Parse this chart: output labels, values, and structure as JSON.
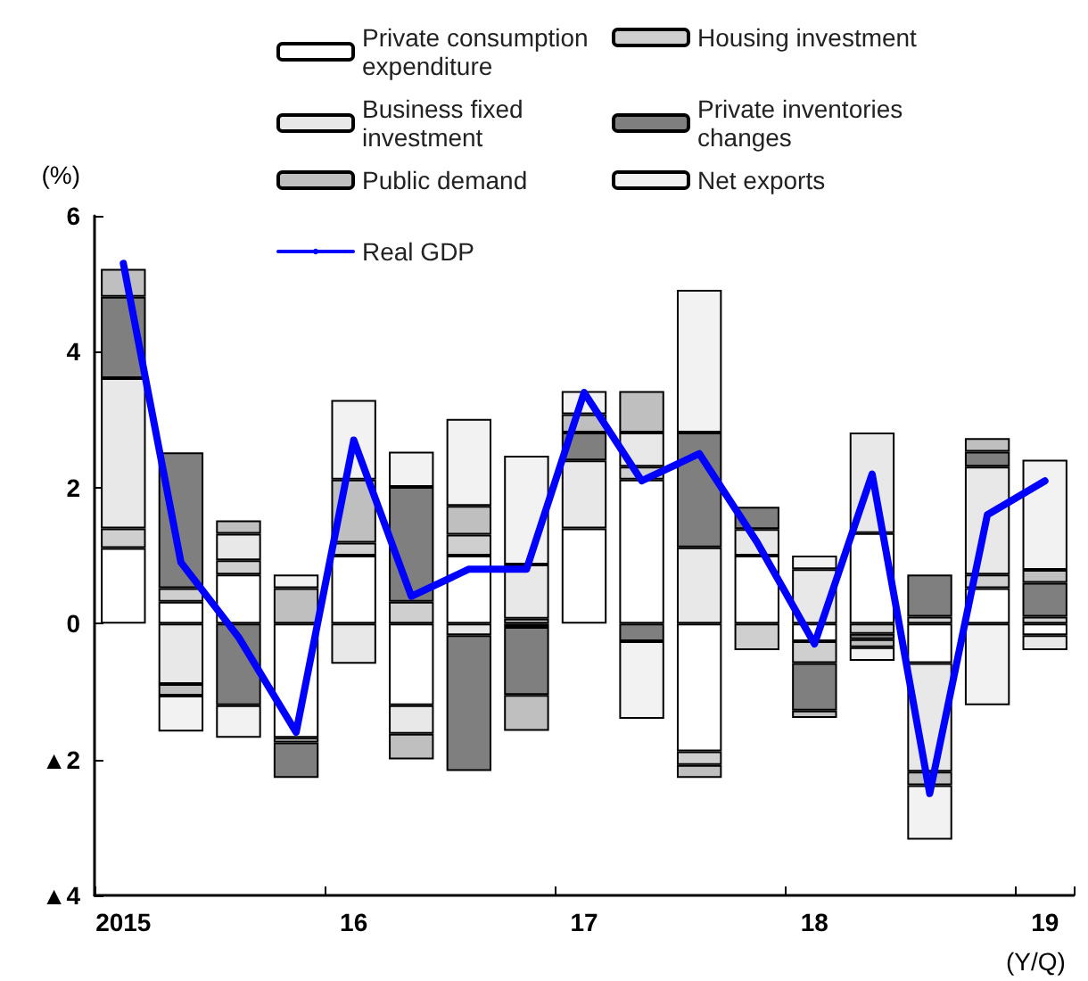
{
  "chart_data": {
    "type": "bar",
    "stacked": true,
    "ylabel": "(%)",
    "xlabel": "(Y/Q)",
    "categories": [
      "2015",
      null,
      null,
      null,
      "16",
      null,
      null,
      null,
      "17",
      null,
      null,
      null,
      "18",
      null,
      null,
      null,
      "19"
    ],
    "ylim": [
      -4,
      6
    ],
    "yticks": [
      {
        "value": -4,
        "label": "▲4"
      },
      {
        "value": -2,
        "label": "▲2"
      },
      0,
      2,
      4,
      6
    ],
    "grid": false,
    "legend": "top",
    "marker": "none",
    "series": [
      {
        "name": "Private consumption expenditure",
        "color": "#ffffff",
        "values": [
          1.11,
          0.32,
          0.72,
          -1.68,
          1.0,
          -1.2,
          1.0,
          -0.05,
          1.4,
          2.12,
          -1.88,
          1.0,
          -0.26,
          1.33,
          -0.58,
          0.52,
          -0.17
        ]
      },
      {
        "name": "Housing investment",
        "color": "#cfcfcf",
        "values": [
          0.29,
          0.2,
          0.21,
          null,
          0.19,
          0.32,
          0.31,
          0.07,
          null,
          0.19,
          -0.2,
          -0.39,
          -0.32,
          -0.15,
          0.1,
          0.2,
          0.1
        ]
      },
      {
        "name": "Business fixed investment",
        "color": "#e8e8e8",
        "values": [
          2.21,
          -0.89,
          0.39,
          -0.07,
          -0.59,
          -0.42,
          -0.17,
          0.8,
          1.0,
          0.5,
          1.12,
          0.39,
          0.8,
          1.48,
          -1.6,
          1.59,
          -0.22
        ]
      },
      {
        "name": "Private inventories changes",
        "color": "#7f7f7f",
        "values": [
          1.2,
          2.0,
          -1.2,
          -0.52,
          null,
          1.69,
          -2.0,
          -1.0,
          0.41,
          -0.26,
          1.69,
          0.33,
          -0.7,
          -0.08,
          0.62,
          0.22,
          0.5
        ]
      },
      {
        "name": "Public demand",
        "color": "#bfbfbf",
        "values": [
          0.41,
          -0.17,
          0.2,
          0.52,
          0.93,
          -0.38,
          0.42,
          -0.53,
          0.27,
          0.61,
          -0.19,
          null,
          -0.11,
          -0.12,
          -0.2,
          0.2,
          0.19
        ]
      },
      {
        "name": "Net exports",
        "color": "#f2f2f2",
        "values": [
          null,
          -0.53,
          -0.48,
          0.2,
          1.17,
          0.52,
          1.28,
          1.6,
          0.34,
          -1.14,
          2.1,
          null,
          0.2,
          -0.2,
          -0.8,
          -1.2,
          1.62
        ]
      },
      {
        "name": "Real GDP",
        "type": "line",
        "color": "#0000ff",
        "line_style": "solid",
        "values": [
          5.3,
          0.9,
          -0.2,
          -1.6,
          2.7,
          0.4,
          0.8,
          0.8,
          3.4,
          2.1,
          2.5,
          1.2,
          -0.3,
          2.2,
          -2.5,
          1.6,
          2.1
        ]
      }
    ]
  }
}
